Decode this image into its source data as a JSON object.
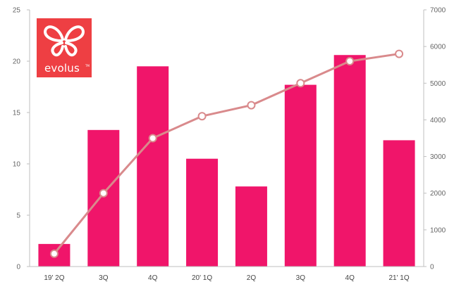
{
  "chart_data": {
    "type": "bar",
    "categories": [
      "19' 2Q",
      "3Q",
      "4Q",
      "20' 1Q",
      "2Q",
      "3Q",
      "4Q",
      "21' 1Q"
    ],
    "series": [
      {
        "type": "bar",
        "axis": "left",
        "color": "#f0156a",
        "values": [
          2.2,
          13.3,
          19.5,
          10.5,
          7.8,
          17.7,
          20.6,
          12.3
        ]
      },
      {
        "type": "line",
        "axis": "right",
        "color": "#d98a8c",
        "values": [
          350,
          2000,
          3500,
          4100,
          4400,
          5000,
          5600,
          5800
        ]
      }
    ],
    "left_axis": {
      "range": [
        0,
        25
      ],
      "ticks": [
        0,
        5,
        10,
        15,
        20,
        25
      ],
      "tick_labels": [
        "0",
        "5",
        "10",
        "15",
        "20",
        "25"
      ]
    },
    "right_axis": {
      "range": [
        0,
        7000
      ],
      "ticks": [
        0,
        1000,
        2000,
        3000,
        4000,
        5000,
        6000,
        7000
      ],
      "tick_labels": [
        "0",
        "1000",
        "2000",
        "3000",
        "4000",
        "5000",
        "6000",
        "7000"
      ]
    },
    "grid": false,
    "legend": "none"
  },
  "logo": {
    "text": "evolus",
    "tm": "TM",
    "icon": "butterfly-icon",
    "background_color": "#ee3f43"
  }
}
